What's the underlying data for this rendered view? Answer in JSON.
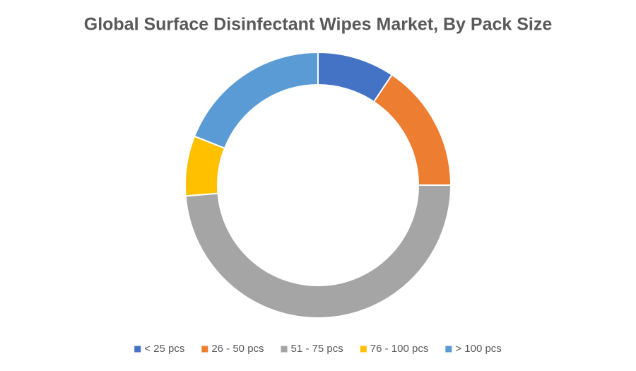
{
  "chart_data": {
    "type": "donut",
    "title": "Global Surface Disinfectant Wipes Market, By Pack Size",
    "categories": [
      "< 25 pcs",
      "26 - 50 pcs",
      "51 - 75 pcs",
      "76 - 100 pcs",
      "> 100 pcs"
    ],
    "values": [
      9.4,
      15.6,
      48.7,
      7.3,
      19.0
    ],
    "colors": [
      "#4472c4",
      "#ed7d31",
      "#a5a5a5",
      "#ffc000",
      "#5b9bd5"
    ],
    "legend": "bottom"
  }
}
